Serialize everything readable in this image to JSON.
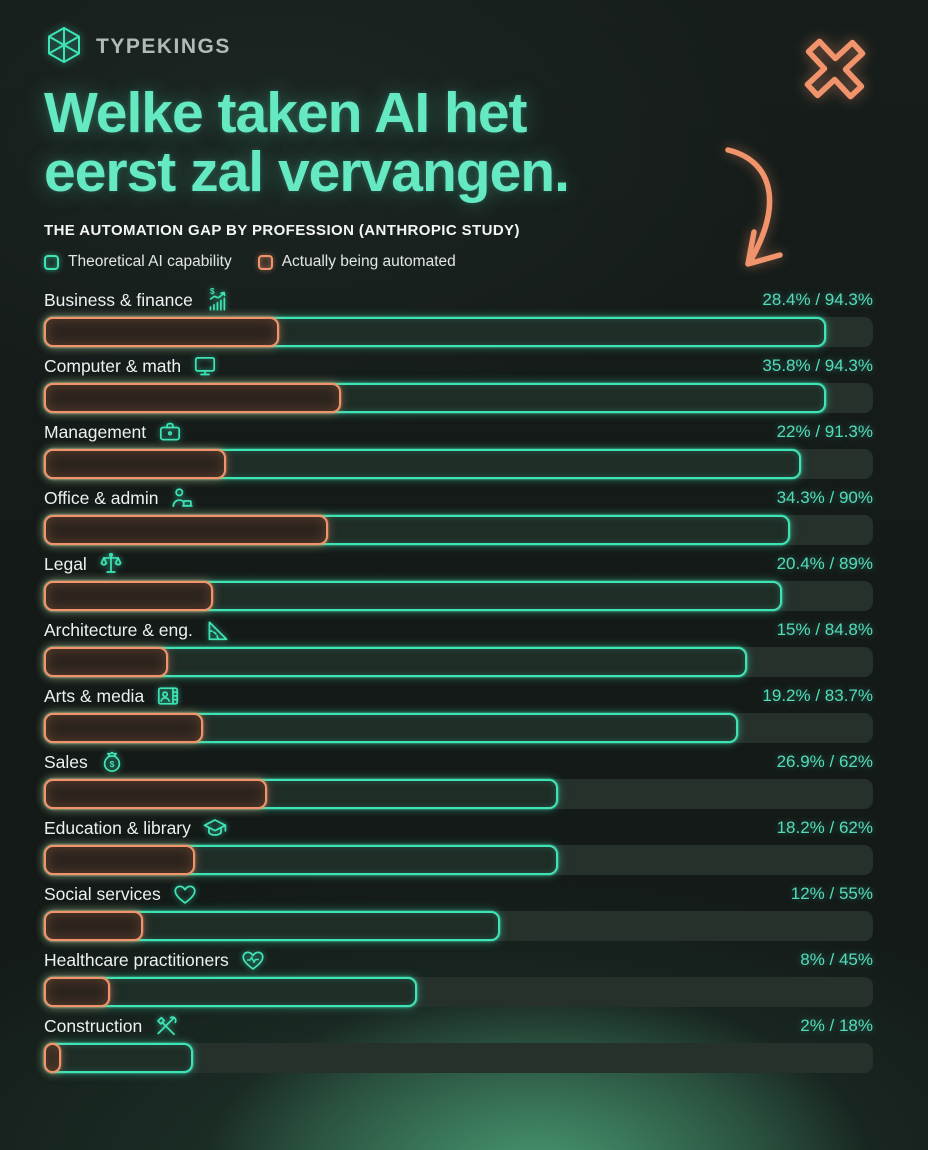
{
  "brand": {
    "name": "TYPEKINGS",
    "logo_icon": "cube-wireframe-icon"
  },
  "title": {
    "line1": "Welke taken AI het",
    "line2": "eerst zal vervangen."
  },
  "subtitle": "THE AUTOMATION GAP BY PROFESSION (ANTHROPIC STUDY)",
  "colors": {
    "teal": "#3fe4b6",
    "orange": "#f2946b",
    "title_text": "#65e9c3",
    "value_text": "#52dcba",
    "background": "#151b19",
    "track": "#26312c"
  },
  "legend": {
    "items": [
      {
        "label": "Theoretical AI capability",
        "color": "#3fe4b6"
      },
      {
        "label": "Actually being automated",
        "color": "#f2946b"
      }
    ]
  },
  "decorations": {
    "x_mark_icon": "x-mark-icon",
    "arrow_icon": "curved-arrow-icon"
  },
  "chart_data": {
    "type": "bar",
    "orientation": "horizontal",
    "xlim": [
      0,
      100
    ],
    "grid": false,
    "legend_position": "top-left",
    "series_names": [
      "Actually being automated",
      "Theoretical AI capability"
    ],
    "rows": [
      {
        "label": "Business & finance",
        "icon": "finance-growth-icon",
        "automated": 28.4,
        "capability": 94.3,
        "display": "28.4% / 94.3%"
      },
      {
        "label": "Computer & math",
        "icon": "monitor-icon",
        "automated": 35.8,
        "capability": 94.3,
        "display": "35.8% / 94.3%"
      },
      {
        "label": "Management",
        "icon": "briefcase-icon",
        "automated": 22,
        "capability": 91.3,
        "display": "22% / 91.3%"
      },
      {
        "label": "Office & admin",
        "icon": "office-worker-icon",
        "automated": 34.3,
        "capability": 90,
        "display": "34.3% / 90%"
      },
      {
        "label": "Legal",
        "icon": "scales-icon",
        "automated": 20.4,
        "capability": 89,
        "display": "20.4% / 89%"
      },
      {
        "label": "Architecture & eng.",
        "icon": "set-square-icon",
        "automated": 15,
        "capability": 84.8,
        "display": "15% / 84.8%"
      },
      {
        "label": "Arts & media",
        "icon": "portrait-card-icon",
        "automated": 19.2,
        "capability": 83.7,
        "display": "19.2% / 83.7%"
      },
      {
        "label": "Sales",
        "icon": "money-bag-icon",
        "automated": 26.9,
        "capability": 62,
        "display": "26.9% / 62%"
      },
      {
        "label": "Education & library",
        "icon": "graduation-cap-icon",
        "automated": 18.2,
        "capability": 62,
        "display": "18.2% / 62%"
      },
      {
        "label": "Social services",
        "icon": "heart-icon",
        "automated": 12,
        "capability": 55,
        "display": "12% / 55%"
      },
      {
        "label": "Healthcare practitioners",
        "icon": "heart-pulse-icon",
        "automated": 8,
        "capability": 45,
        "display": "8% / 45%"
      },
      {
        "label": "Construction",
        "icon": "crossed-tools-icon",
        "automated": 2,
        "capability": 18,
        "display": "2% / 18%"
      }
    ]
  }
}
